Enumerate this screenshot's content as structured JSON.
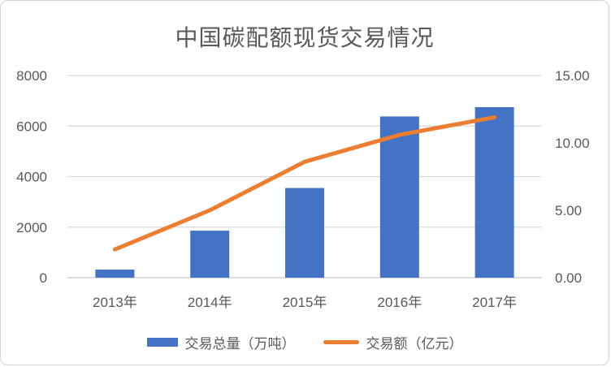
{
  "chart_data": {
    "type": "combo",
    "title": "中国碳配额现货交易情况",
    "categories": [
      "2013年",
      "2014年",
      "2015年",
      "2016年",
      "2017年"
    ],
    "series": [
      {
        "name": "交易总量（万吨）",
        "type": "bar",
        "axis": "left",
        "color": "#4472C4",
        "values": [
          320,
          1860,
          3550,
          6380,
          6750
        ]
      },
      {
        "name": "交易额（亿元）",
        "type": "line",
        "axis": "right",
        "color": "#ED7D31",
        "values": [
          2.1,
          5.0,
          8.6,
          10.6,
          11.9
        ]
      }
    ],
    "left_axis": {
      "min": 0,
      "max": 8000,
      "ticks": [
        "0",
        "2000",
        "4000",
        "6000",
        "8000"
      ]
    },
    "right_axis": {
      "min": 0,
      "max": 15,
      "ticks": [
        "0.00",
        "5.00",
        "10.00",
        "15.00"
      ]
    },
    "grid": true,
    "legend_position": "bottom",
    "colors": {
      "gridline": "#d9d9d9",
      "axis_line": "#c9c9c9",
      "text": "#595959",
      "bar": "#4472C4",
      "line": "#ED7D31"
    }
  }
}
